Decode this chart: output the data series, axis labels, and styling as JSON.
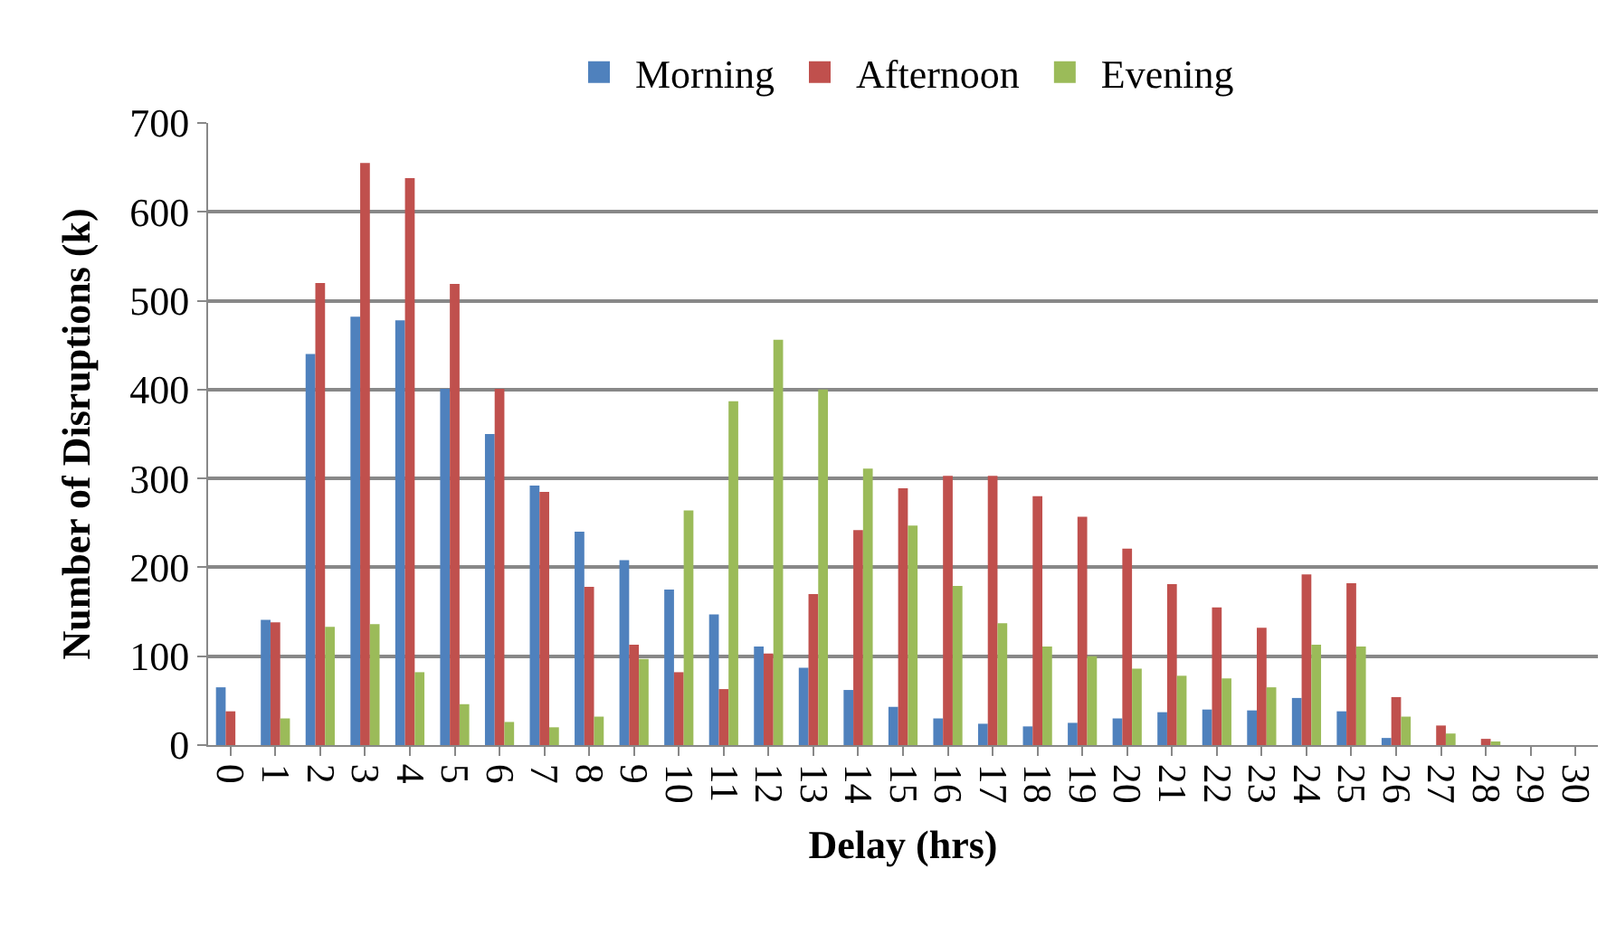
{
  "chart_data": {
    "type": "bar",
    "xlabel": "Delay (hrs)",
    "ylabel": "Number of Disruptions (k)",
    "categories": [
      "0",
      "1",
      "2",
      "3",
      "4",
      "5",
      "6",
      "7",
      "8",
      "9",
      "10",
      "11",
      "12",
      "13",
      "14",
      "15",
      "16",
      "17",
      "18",
      "19",
      "20",
      "21",
      "22",
      "23",
      "24",
      "25",
      "26",
      "27",
      "28",
      "29",
      "30"
    ],
    "series": [
      {
        "name": "Morning",
        "color": "#4f81bd",
        "values": [
          65,
          141,
          440,
          482,
          478,
          401,
          350,
          292,
          240,
          208,
          175,
          147,
          111,
          87,
          62,
          43,
          30,
          24,
          21,
          25,
          30,
          37,
          40,
          39,
          53,
          38,
          8,
          null,
          0,
          0,
          0
        ]
      },
      {
        "name": "Afternoon",
        "color": "#c0504d",
        "values": [
          38,
          138,
          520,
          655,
          638,
          519,
          401,
          285,
          178,
          113,
          82,
          63,
          103,
          170,
          242,
          289,
          303,
          303,
          280,
          257,
          221,
          181,
          155,
          132,
          192,
          182,
          54,
          22,
          7,
          null,
          0
        ]
      },
      {
        "name": "Evening",
        "color": "#9bbb59",
        "values": [
          0,
          30,
          133,
          136,
          82,
          46,
          26,
          20,
          32,
          97,
          264,
          387,
          456,
          400,
          311,
          247,
          179,
          137,
          111,
          100,
          86,
          78,
          75,
          65,
          113,
          111,
          32,
          13,
          4,
          null,
          0
        ]
      }
    ],
    "ylim": [
      0,
      700
    ],
    "yticks": [
      0,
      100,
      200,
      300,
      400,
      500,
      600,
      700
    ],
    "grid": "y",
    "legend": "top"
  }
}
